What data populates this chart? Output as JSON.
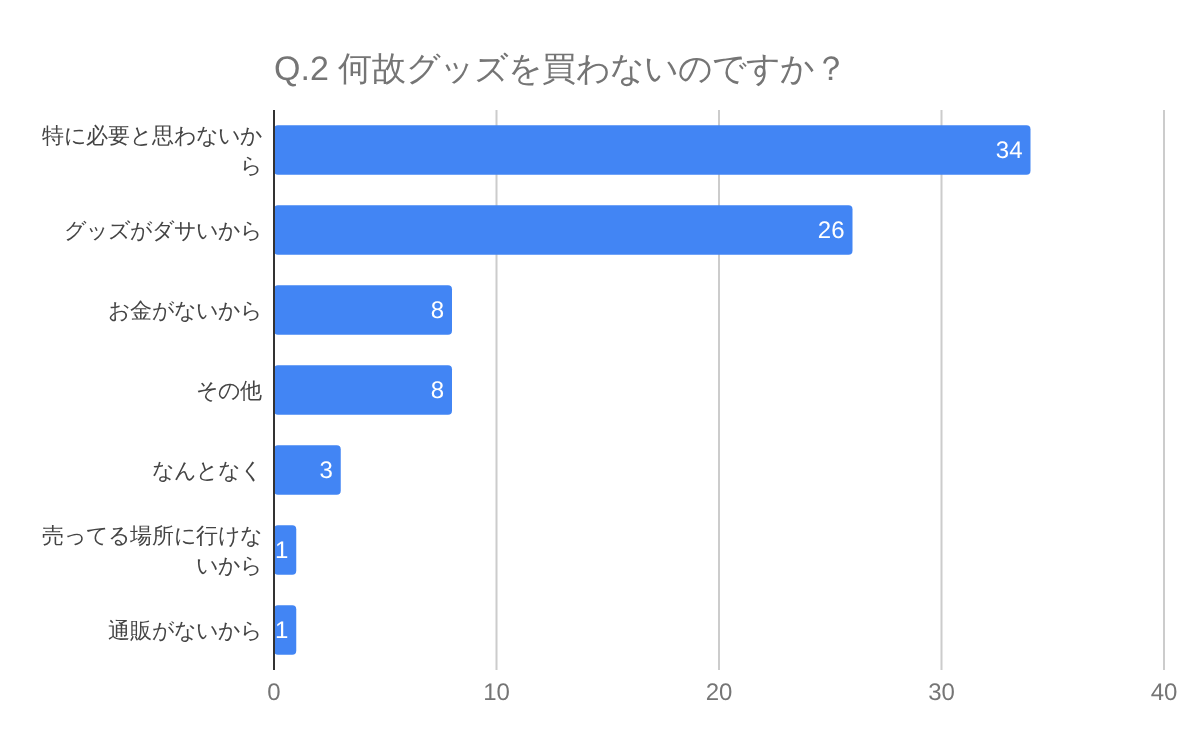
{
  "chart_data": {
    "type": "bar",
    "orientation": "horizontal",
    "title": "Q.2  何故グッズを買わないのですか？",
    "categories": [
      "特に必要と思わないから",
      "グッズがダサいから",
      "お金がないから",
      "その他",
      "なんとなく",
      "売ってる場所に行けないから",
      "通販がないから"
    ],
    "values": [
      34,
      26,
      8,
      8,
      3,
      1,
      1
    ],
    "color": "#4285f4",
    "xlim": [
      0,
      40
    ],
    "xticks": [
      0,
      10,
      20,
      30,
      40
    ],
    "grid": "x",
    "data_labels": true
  }
}
